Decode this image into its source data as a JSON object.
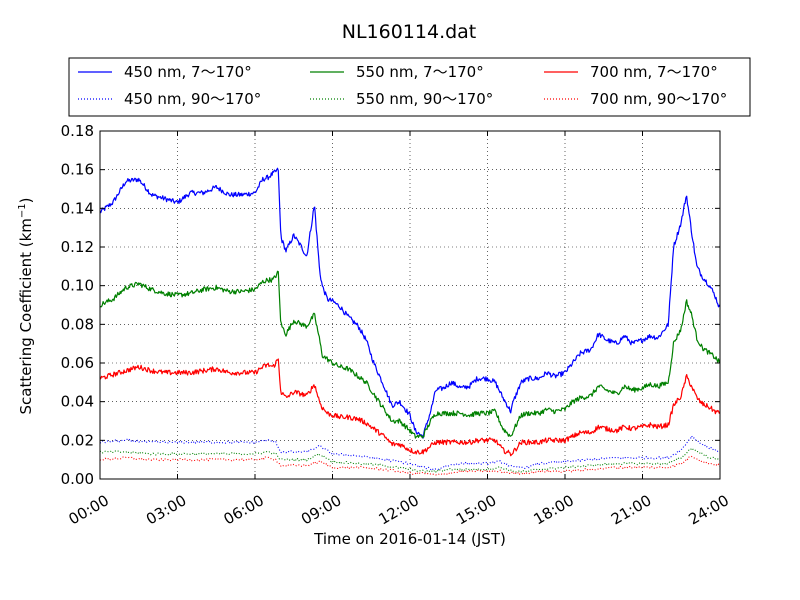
{
  "chart_data": {
    "type": "line",
    "title": "NL160114.dat",
    "xlabel": "Time on 2016-01-14 (JST)",
    "ylabel": "Scattering Coefficient (km",
    "ylabel_sup": "−1",
    "ylabel_close": ")",
    "xlim": [
      "00:00",
      "24:00"
    ],
    "ylim": [
      0.0,
      0.18
    ],
    "grid": true,
    "legend_position": "top, above plot",
    "x_ticks": [
      "00:00",
      "03:00",
      "06:00",
      "09:00",
      "12:00",
      "15:00",
      "18:00",
      "21:00",
      "24:00"
    ],
    "y_ticks": [
      "0.00",
      "0.02",
      "0.04",
      "0.06",
      "0.08",
      "0.10",
      "0.12",
      "0.14",
      "0.16",
      "0.18"
    ],
    "x_unit": "hours",
    "series": [
      {
        "name": "450 nm, 7～170°",
        "color": "#0000ff",
        "style": "solid",
        "x": [
          0,
          0.5,
          1,
          1.5,
          2,
          2.5,
          3,
          3.5,
          4,
          4.5,
          5,
          5.5,
          6,
          6.3,
          6.5,
          6.7,
          6.9,
          7,
          7.2,
          7.5,
          7.8,
          8,
          8.3,
          8.5,
          8.6,
          8.8,
          9,
          9.3,
          9.6,
          10,
          10.3,
          10.6,
          11,
          11.3,
          11.6,
          12,
          12.2,
          12.5,
          12.8,
          13,
          13.3,
          13.6,
          14,
          14.3,
          14.6,
          15,
          15.3,
          15.6,
          15.9,
          16,
          16.3,
          16.6,
          17,
          17.3,
          17.6,
          18,
          18.3,
          18.6,
          19,
          19.3,
          19.6,
          20,
          20.3,
          20.6,
          21,
          21.3,
          21.6,
          22,
          22.2,
          22.5,
          22.7,
          22.9,
          23.1,
          23.3,
          23.6,
          23.8,
          24
        ],
        "y": [
          0.138,
          0.143,
          0.154,
          0.155,
          0.147,
          0.145,
          0.143,
          0.148,
          0.148,
          0.151,
          0.147,
          0.147,
          0.148,
          0.155,
          0.156,
          0.158,
          0.16,
          0.125,
          0.118,
          0.126,
          0.12,
          0.115,
          0.142,
          0.108,
          0.1,
          0.093,
          0.092,
          0.089,
          0.084,
          0.079,
          0.072,
          0.06,
          0.048,
          0.038,
          0.04,
          0.033,
          0.025,
          0.022,
          0.035,
          0.046,
          0.047,
          0.05,
          0.047,
          0.048,
          0.052,
          0.052,
          0.05,
          0.042,
          0.035,
          0.04,
          0.05,
          0.052,
          0.052,
          0.055,
          0.053,
          0.055,
          0.06,
          0.065,
          0.067,
          0.075,
          0.072,
          0.07,
          0.074,
          0.07,
          0.072,
          0.074,
          0.073,
          0.08,
          0.12,
          0.133,
          0.147,
          0.128,
          0.11,
          0.105,
          0.1,
          0.095,
          0.088
        ]
      },
      {
        "name": "550 nm, 7～170°",
        "color": "#008000",
        "style": "solid",
        "x": [
          0,
          0.5,
          1,
          1.5,
          2,
          2.5,
          3,
          3.5,
          4,
          4.5,
          5,
          5.5,
          6,
          6.3,
          6.5,
          6.7,
          6.9,
          7,
          7.2,
          7.5,
          7.8,
          8,
          8.3,
          8.5,
          8.6,
          8.8,
          9,
          9.3,
          9.6,
          10,
          10.3,
          10.6,
          11,
          11.3,
          11.6,
          12,
          12.2,
          12.5,
          12.8,
          13,
          13.3,
          13.6,
          14,
          14.3,
          14.6,
          15,
          15.3,
          15.6,
          15.9,
          16,
          16.3,
          16.6,
          17,
          17.3,
          17.6,
          18,
          18.3,
          18.6,
          19,
          19.3,
          19.6,
          20,
          20.3,
          20.6,
          21,
          21.3,
          21.6,
          22,
          22.2,
          22.5,
          22.7,
          22.9,
          23.1,
          23.3,
          23.6,
          23.8,
          24
        ],
        "y": [
          0.09,
          0.093,
          0.099,
          0.101,
          0.098,
          0.096,
          0.095,
          0.096,
          0.098,
          0.099,
          0.097,
          0.097,
          0.098,
          0.102,
          0.103,
          0.103,
          0.107,
          0.08,
          0.075,
          0.082,
          0.08,
          0.079,
          0.085,
          0.072,
          0.064,
          0.062,
          0.06,
          0.058,
          0.057,
          0.053,
          0.05,
          0.044,
          0.036,
          0.03,
          0.03,
          0.025,
          0.022,
          0.022,
          0.03,
          0.034,
          0.034,
          0.034,
          0.034,
          0.033,
          0.034,
          0.034,
          0.035,
          0.026,
          0.022,
          0.025,
          0.033,
          0.034,
          0.034,
          0.036,
          0.035,
          0.036,
          0.04,
          0.042,
          0.043,
          0.048,
          0.046,
          0.044,
          0.048,
          0.046,
          0.047,
          0.049,
          0.048,
          0.05,
          0.07,
          0.078,
          0.092,
          0.085,
          0.073,
          0.068,
          0.065,
          0.063,
          0.06
        ]
      },
      {
        "name": "700 nm, 7～170°",
        "color": "#ff0000",
        "style": "solid",
        "x": [
          0,
          0.5,
          1,
          1.5,
          2,
          2.5,
          3,
          3.5,
          4,
          4.5,
          5,
          5.5,
          6,
          6.3,
          6.5,
          6.7,
          6.9,
          7,
          7.2,
          7.5,
          7.8,
          8,
          8.3,
          8.5,
          8.6,
          8.8,
          9,
          9.3,
          9.6,
          10,
          10.3,
          10.6,
          11,
          11.3,
          11.6,
          12,
          12.2,
          12.5,
          12.8,
          13,
          13.3,
          13.6,
          14,
          14.3,
          14.6,
          15,
          15.3,
          15.6,
          15.9,
          16,
          16.3,
          16.6,
          17,
          17.3,
          17.6,
          18,
          18.3,
          18.6,
          19,
          19.3,
          19.6,
          20,
          20.3,
          20.6,
          21,
          21.3,
          21.6,
          22,
          22.2,
          22.5,
          22.7,
          22.9,
          23.1,
          23.3,
          23.6,
          23.8,
          24
        ],
        "y": [
          0.052,
          0.054,
          0.056,
          0.058,
          0.056,
          0.055,
          0.055,
          0.055,
          0.056,
          0.057,
          0.055,
          0.055,
          0.055,
          0.058,
          0.059,
          0.058,
          0.062,
          0.045,
          0.042,
          0.045,
          0.044,
          0.043,
          0.049,
          0.04,
          0.037,
          0.034,
          0.033,
          0.032,
          0.032,
          0.031,
          0.029,
          0.026,
          0.022,
          0.018,
          0.018,
          0.015,
          0.014,
          0.014,
          0.017,
          0.019,
          0.019,
          0.019,
          0.019,
          0.019,
          0.02,
          0.02,
          0.02,
          0.015,
          0.013,
          0.014,
          0.019,
          0.019,
          0.019,
          0.02,
          0.02,
          0.02,
          0.022,
          0.024,
          0.024,
          0.027,
          0.026,
          0.025,
          0.027,
          0.026,
          0.027,
          0.028,
          0.027,
          0.028,
          0.038,
          0.043,
          0.053,
          0.048,
          0.042,
          0.039,
          0.037,
          0.035,
          0.034
        ]
      },
      {
        "name": "450 nm, 90～170°",
        "color": "#0000ff",
        "style": "dotted",
        "x": [
          0,
          1,
          2,
          3,
          4,
          5,
          6,
          6.5,
          6.8,
          7,
          7.5,
          8,
          8.5,
          9,
          10,
          11,
          12,
          12.5,
          13,
          13.5,
          14,
          15,
          15.5,
          16,
          16.5,
          17,
          18,
          19,
          20,
          21,
          22,
          22.5,
          22.9,
          23.3,
          23.6,
          24
        ],
        "y": [
          0.019,
          0.02,
          0.019,
          0.019,
          0.019,
          0.019,
          0.019,
          0.02,
          0.019,
          0.014,
          0.014,
          0.014,
          0.017,
          0.013,
          0.012,
          0.01,
          0.008,
          0.006,
          0.005,
          0.007,
          0.008,
          0.008,
          0.009,
          0.006,
          0.006,
          0.008,
          0.009,
          0.01,
          0.011,
          0.011,
          0.011,
          0.015,
          0.022,
          0.018,
          0.016,
          0.014
        ]
      },
      {
        "name": "550 nm, 90～170°",
        "color": "#008000",
        "style": "dotted",
        "x": [
          0,
          1,
          2,
          3,
          4,
          5,
          6,
          6.5,
          6.8,
          7,
          7.5,
          8,
          8.5,
          9,
          10,
          11,
          12,
          12.5,
          13,
          13.5,
          14,
          15,
          15.5,
          16,
          16.5,
          17,
          18,
          19,
          20,
          21,
          22,
          22.5,
          22.9,
          23.3,
          23.6,
          24
        ],
        "y": [
          0.014,
          0.014,
          0.013,
          0.013,
          0.013,
          0.013,
          0.013,
          0.014,
          0.013,
          0.01,
          0.01,
          0.01,
          0.013,
          0.009,
          0.008,
          0.007,
          0.005,
          0.004,
          0.004,
          0.005,
          0.005,
          0.005,
          0.006,
          0.004,
          0.004,
          0.005,
          0.006,
          0.007,
          0.008,
          0.008,
          0.008,
          0.011,
          0.016,
          0.013,
          0.011,
          0.01
        ]
      },
      {
        "name": "700 nm, 90～170°",
        "color": "#ff0000",
        "style": "dotted",
        "x": [
          0,
          1,
          2,
          3,
          4,
          5,
          6,
          6.5,
          6.8,
          7,
          7.5,
          8,
          8.5,
          9,
          10,
          11,
          12,
          12.5,
          13,
          13.5,
          14,
          15,
          15.5,
          16,
          16.5,
          17,
          18,
          19,
          20,
          21,
          22,
          22.5,
          22.9,
          23.3,
          23.6,
          24
        ],
        "y": [
          0.01,
          0.011,
          0.01,
          0.01,
          0.01,
          0.01,
          0.01,
          0.011,
          0.01,
          0.007,
          0.007,
          0.007,
          0.009,
          0.006,
          0.006,
          0.005,
          0.003,
          0.003,
          0.002,
          0.003,
          0.004,
          0.004,
          0.004,
          0.003,
          0.003,
          0.004,
          0.004,
          0.005,
          0.006,
          0.006,
          0.006,
          0.008,
          0.012,
          0.009,
          0.008,
          0.007
        ]
      }
    ]
  }
}
